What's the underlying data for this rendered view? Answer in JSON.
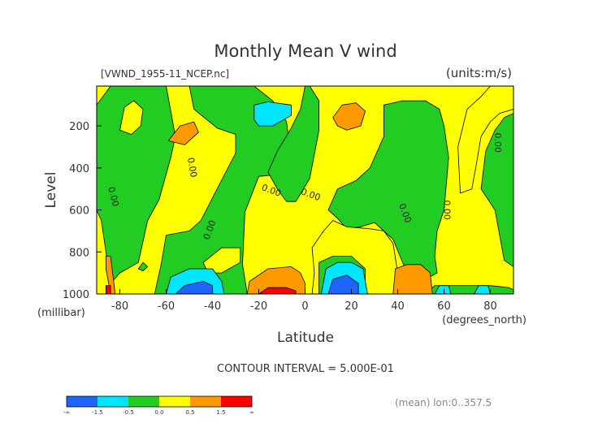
{
  "chart_data": {
    "type": "heatmap",
    "title": "Monthly Mean V wind",
    "file_label": "[VWND_1955-11_NCEP.nc]",
    "units_label": "(units:m/s)",
    "xlabel": "Latitude",
    "x_units": "(degrees_north)",
    "ylabel": "Level",
    "y_units": "(millibar)",
    "xlim": [
      -90,
      90
    ],
    "ylim": [
      1000,
      10
    ],
    "x_ticks": [
      "-80",
      "-60",
      "-40",
      "-20",
      "0",
      "20",
      "40",
      "60",
      "80"
    ],
    "x_tick_values": [
      -80,
      -60,
      -40,
      -20,
      0,
      20,
      40,
      60,
      80
    ],
    "y_ticks": [
      "200",
      "400",
      "600",
      "800",
      "1000"
    ],
    "y_tick_values": [
      200,
      400,
      600,
      800,
      1000
    ],
    "contour_interval_text": "CONTOUR INTERVAL = 5.000E-01",
    "footnote": "(mean) lon:0..357.5",
    "contour_labels": [
      {
        "text": "0.00",
        "lat": -84,
        "lev": 540,
        "angle": 75
      },
      {
        "text": "0.00",
        "lat": -50,
        "lev": 400,
        "angle": 80
      },
      {
        "text": "0.00",
        "lat": -40,
        "lev": 700,
        "angle": -70
      },
      {
        "text": "0.00",
        "lat": -15,
        "lev": 520,
        "angle": 20
      },
      {
        "text": "0.00",
        "lat": 2,
        "lev": 540,
        "angle": 20
      },
      {
        "text": "0.00",
        "lat": 42,
        "lev": 620,
        "angle": 70
      },
      {
        "text": "0.00",
        "lat": 60,
        "lev": 600,
        "angle": 90
      },
      {
        "text": "0.00",
        "lat": 82,
        "lev": 280,
        "angle": 90
      }
    ],
    "legend": {
      "boundary_labels": [
        "-∞",
        "-1.5",
        "-0.5",
        "0.0",
        "0.5",
        "1.5",
        "∞"
      ],
      "bins": [
        "< -1.5",
        "-1.5 to -0.5",
        "-0.5 to 0.0",
        "0.0 to 0.5",
        "0.5 to 1.5",
        "> 1.5"
      ],
      "colors": [
        "#1e64ff",
        "#00e6ff",
        "#22cc22",
        "#ffff00",
        "#ff9900",
        "#ff0000"
      ]
    },
    "background_color": "#ffff00",
    "regions": [
      {
        "fill": "#22cc22",
        "pts": [
          [
            -90,
            600
          ],
          [
            -90,
            100
          ],
          [
            -84,
            10
          ],
          [
            -60,
            10
          ],
          [
            -56,
            250
          ],
          [
            -58,
            350
          ],
          [
            -63,
            550
          ],
          [
            -68,
            650
          ],
          [
            -72,
            850
          ],
          [
            -80,
            900
          ],
          [
            -84,
            950
          ],
          [
            -88,
            650
          ]
        ]
      },
      {
        "fill": "#ffff00",
        "pts": [
          [
            -80,
            220
          ],
          [
            -78,
            110
          ],
          [
            -74,
            80
          ],
          [
            -70,
            120
          ],
          [
            -71,
            200
          ],
          [
            -75,
            240
          ]
        ]
      },
      {
        "fill": "#22cc22",
        "pts": [
          [
            -65,
            1000
          ],
          [
            -62,
            850
          ],
          [
            -60,
            720
          ],
          [
            -50,
            700
          ],
          [
            -45,
            650
          ],
          [
            -38,
            500
          ],
          [
            -30,
            330
          ],
          [
            -30,
            240
          ],
          [
            -38,
            210
          ],
          [
            -48,
            120
          ],
          [
            -50,
            10
          ],
          [
            -22,
            10
          ],
          [
            -14,
            80
          ],
          [
            -8,
            180
          ],
          [
            -6,
            360
          ],
          [
            -10,
            430
          ],
          [
            -20,
            440
          ],
          [
            -26,
            610
          ],
          [
            -27,
            860
          ],
          [
            -25,
            1000
          ]
        ]
      },
      {
        "fill": "#ffff00",
        "pts": [
          [
            -44,
            850
          ],
          [
            -36,
            780
          ],
          [
            -28,
            780
          ],
          [
            -28,
            850
          ],
          [
            -36,
            900
          ],
          [
            -42,
            900
          ]
        ]
      },
      {
        "fill": "#22cc22",
        "pts": [
          [
            -16,
            420
          ],
          [
            -12,
            320
          ],
          [
            -6,
            210
          ],
          [
            -2,
            120
          ],
          [
            0,
            10
          ],
          [
            2,
            10
          ],
          [
            6,
            80
          ],
          [
            6,
            220
          ],
          [
            2,
            450
          ],
          [
            -4,
            560
          ],
          [
            -8,
            560
          ],
          [
            -12,
            500
          ]
        ]
      },
      {
        "fill": "#ff9900",
        "pts": [
          [
            -59,
            270
          ],
          [
            -54,
            200
          ],
          [
            -48,
            180
          ],
          [
            -46,
            230
          ],
          [
            -52,
            290
          ]
        ]
      },
      {
        "fill": "#00e6ff",
        "pts": [
          [
            -22,
            170
          ],
          [
            -22,
            100
          ],
          [
            -16,
            85
          ],
          [
            -6,
            100
          ],
          [
            -6,
            150
          ],
          [
            -14,
            200
          ],
          [
            -20,
            200
          ]
        ]
      },
      {
        "fill": "#ff9900",
        "pts": [
          [
            12,
            160
          ],
          [
            16,
            100
          ],
          [
            22,
            90
          ],
          [
            26,
            130
          ],
          [
            24,
            200
          ],
          [
            18,
            220
          ],
          [
            14,
            200
          ]
        ]
      },
      {
        "fill": "#22cc22",
        "pts": [
          [
            10,
            600
          ],
          [
            14,
            500
          ],
          [
            22,
            460
          ],
          [
            28,
            400
          ],
          [
            34,
            250
          ],
          [
            34,
            100
          ],
          [
            42,
            80
          ],
          [
            52,
            80
          ],
          [
            58,
            120
          ],
          [
            60,
            200
          ],
          [
            62,
            350
          ],
          [
            60,
            600
          ],
          [
            57,
            700
          ],
          [
            56,
            820
          ],
          [
            57,
            900
          ],
          [
            52,
            930
          ],
          [
            44,
            900
          ],
          [
            38,
            740
          ],
          [
            30,
            660
          ],
          [
            24,
            680
          ],
          [
            18,
            690
          ],
          [
            14,
            640
          ]
        ]
      },
      {
        "fill": "#ffff00",
        "pts": [
          [
            3,
            1000
          ],
          [
            4,
            900
          ],
          [
            3,
            780
          ],
          [
            8,
            700
          ],
          [
            12,
            650
          ],
          [
            18,
            680
          ],
          [
            28,
            690
          ],
          [
            34,
            700
          ],
          [
            38,
            760
          ],
          [
            40,
            900
          ],
          [
            40,
            1000
          ]
        ]
      },
      {
        "fill": "#22cc22",
        "pts": [
          [
            6,
            1000
          ],
          [
            6,
            850
          ],
          [
            12,
            820
          ],
          [
            20,
            820
          ],
          [
            26,
            880
          ],
          [
            26,
            1000
          ]
        ]
      },
      {
        "fill": "#ffff00",
        "pts": [
          [
            67,
            520
          ],
          [
            66,
            300
          ],
          [
            70,
            120
          ],
          [
            76,
            60
          ],
          [
            80,
            10
          ],
          [
            90,
            10
          ],
          [
            90,
            120
          ],
          [
            84,
            140
          ],
          [
            80,
            180
          ],
          [
            76,
            250
          ],
          [
            74,
            380
          ],
          [
            72,
            500
          ]
        ]
      },
      {
        "fill": "#22cc22",
        "pts": [
          [
            76,
            500
          ],
          [
            78,
            320
          ],
          [
            82,
            220
          ],
          [
            86,
            160
          ],
          [
            90,
            140
          ],
          [
            90,
            870
          ],
          [
            86,
            840
          ],
          [
            82,
            600
          ]
        ]
      },
      {
        "fill": "#22cc22",
        "pts": [
          [
            52,
            1000
          ],
          [
            56,
            960
          ],
          [
            70,
            960
          ],
          [
            80,
            960
          ],
          [
            88,
            970
          ],
          [
            90,
            980
          ],
          [
            90,
            1000
          ]
        ]
      },
      {
        "fill": "#ff9900",
        "pts": [
          [
            -84,
            1000
          ],
          [
            -86,
            880
          ],
          [
            -86,
            820
          ],
          [
            -84,
            820
          ],
          [
            -82,
            1000
          ]
        ]
      },
      {
        "fill": "#ff0000",
        "pts": [
          [
            -86,
            1000
          ],
          [
            -86,
            960
          ],
          [
            -84,
            960
          ],
          [
            -84,
            1000
          ]
        ]
      },
      {
        "fill": "#22cc22",
        "pts": [
          [
            -72,
            880
          ],
          [
            -70,
            850
          ],
          [
            -68,
            870
          ],
          [
            -70,
            890
          ]
        ]
      },
      {
        "fill": "#00e6ff",
        "pts": [
          [
            -60,
            1000
          ],
          [
            -58,
            920
          ],
          [
            -50,
            880
          ],
          [
            -40,
            880
          ],
          [
            -36,
            940
          ],
          [
            -35,
            1000
          ]
        ]
      },
      {
        "fill": "#1e64ff",
        "pts": [
          [
            -56,
            1000
          ],
          [
            -52,
            960
          ],
          [
            -44,
            940
          ],
          [
            -40,
            960
          ],
          [
            -40,
            1000
          ]
        ]
      },
      {
        "fill": "#ff9900",
        "pts": [
          [
            -25,
            1000
          ],
          [
            -24,
            940
          ],
          [
            -16,
            880
          ],
          [
            -6,
            870
          ],
          [
            -2,
            900
          ],
          [
            0,
            950
          ],
          [
            0,
            1000
          ]
        ]
      },
      {
        "fill": "#ff0000",
        "pts": [
          [
            -20,
            1000
          ],
          [
            -16,
            970
          ],
          [
            -8,
            970
          ],
          [
            -4,
            985
          ],
          [
            -4,
            1000
          ]
        ]
      },
      {
        "fill": "#00e6ff",
        "pts": [
          [
            7,
            1000
          ],
          [
            9,
            880
          ],
          [
            14,
            850
          ],
          [
            20,
            850
          ],
          [
            25,
            880
          ],
          [
            27,
            1000
          ]
        ]
      },
      {
        "fill": "#1e64ff",
        "pts": [
          [
            10,
            1000
          ],
          [
            12,
            930
          ],
          [
            18,
            910
          ],
          [
            23,
            950
          ],
          [
            23,
            1000
          ]
        ]
      },
      {
        "fill": "#ff9900",
        "pts": [
          [
            38,
            1000
          ],
          [
            39,
            880
          ],
          [
            44,
            860
          ],
          [
            50,
            860
          ],
          [
            54,
            900
          ],
          [
            55,
            1000
          ]
        ]
      },
      {
        "fill": "#00e6ff",
        "pts": [
          [
            56,
            1000
          ],
          [
            58,
            960
          ],
          [
            62,
            960
          ],
          [
            63,
            1000
          ]
        ]
      },
      {
        "fill": "#00e6ff",
        "pts": [
          [
            73,
            1000
          ],
          [
            75,
            960
          ],
          [
            79,
            960
          ],
          [
            80,
            1000
          ]
        ]
      }
    ]
  }
}
